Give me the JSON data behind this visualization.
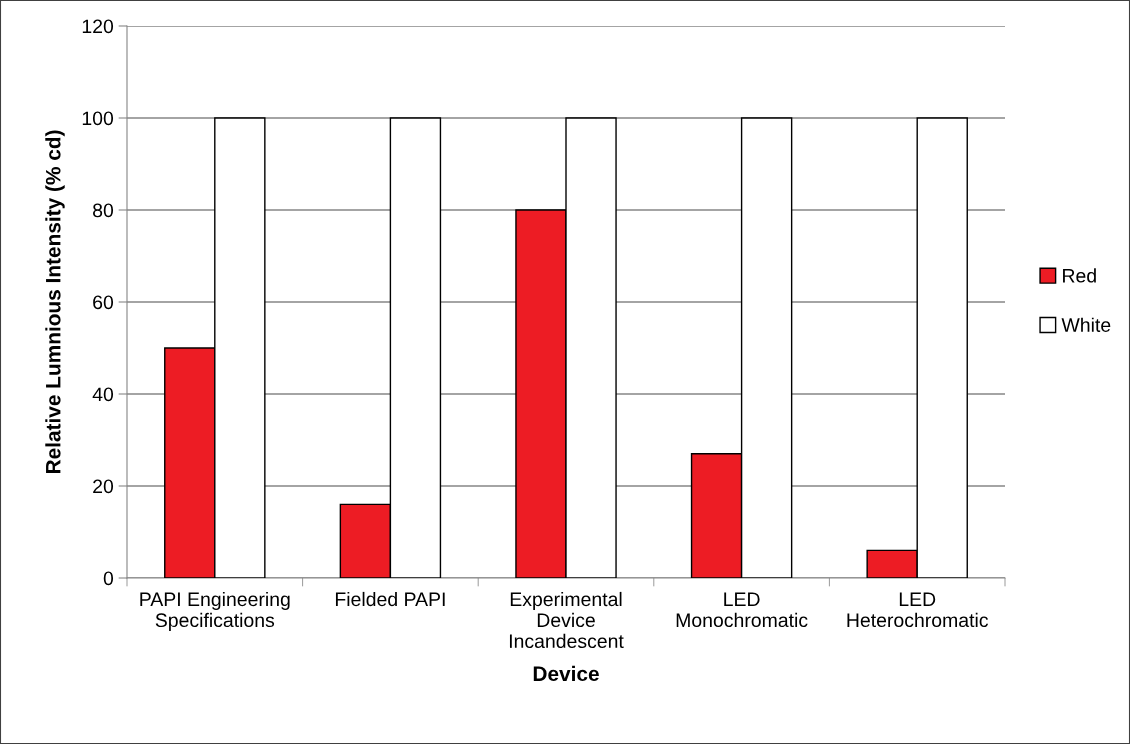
{
  "chart_data": {
    "type": "bar",
    "xlabel": "Device",
    "ylabel": "Relative Lumnious Intensity (% cd)",
    "categories": [
      "PAPI Engineering\nSpecifications",
      "Fielded PAPI",
      "Experimental\nDevice\nIncandescent",
      "LED\nMonochromatic",
      "LED\nHeterochromatic"
    ],
    "series": [
      {
        "name": "Red",
        "color": "#ed1c24",
        "values": [
          50,
          16,
          80,
          27,
          6
        ]
      },
      {
        "name": "White",
        "color": "#ffffff",
        "values": [
          100,
          100,
          100,
          100,
          100
        ]
      }
    ],
    "ylim": [
      0,
      120
    ],
    "yticks": [
      0,
      20,
      40,
      60,
      80,
      100,
      120
    ],
    "grid": "y",
    "legend": "right"
  }
}
